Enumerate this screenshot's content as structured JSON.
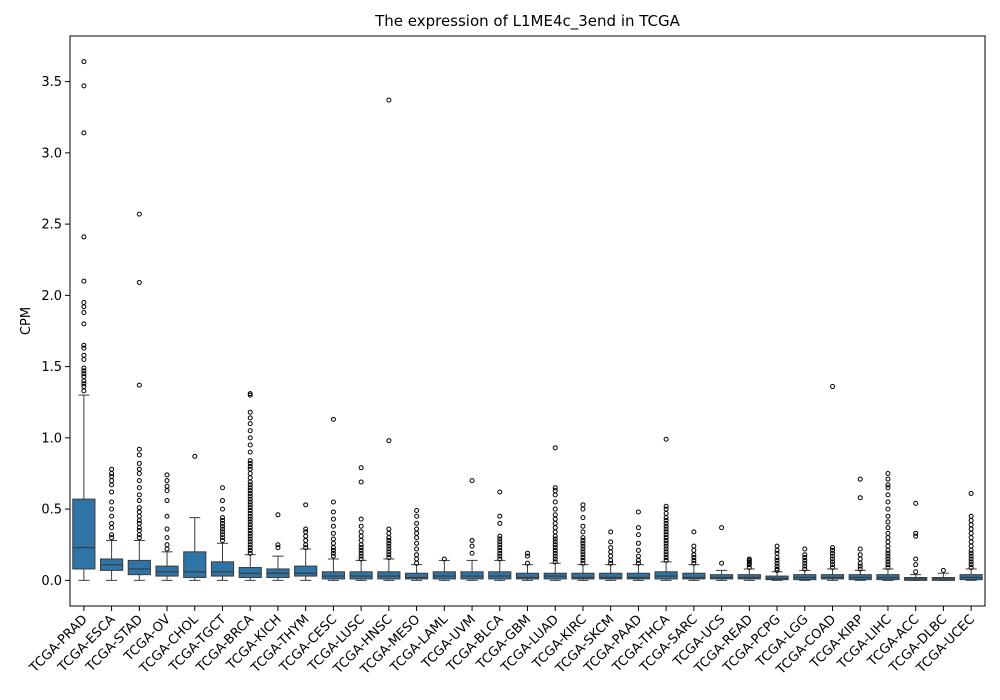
{
  "chart_data": {
    "type": "box",
    "title": "The expression of L1ME4c_3end in TCGA",
    "xlabel": "",
    "ylabel": "CPM",
    "ylim": [
      -0.18,
      3.82
    ],
    "yticks": [
      0.0,
      0.5,
      1.0,
      1.5,
      2.0,
      2.5,
      3.0,
      3.5
    ],
    "ytick_labels": [
      "0.0",
      "0.5",
      "1.0",
      "1.5",
      "2.0",
      "2.5",
      "3.0",
      "3.5"
    ],
    "grid": false,
    "box_color": "#2e74a6",
    "categories": [
      "TCGA-PRAD",
      "TCGA-ESCA",
      "TCGA-STAD",
      "TCGA-OV",
      "TCGA-CHOL",
      "TCGA-TGCT",
      "TCGA-BRCA",
      "TCGA-KICH",
      "TCGA-THYM",
      "TCGA-CESC",
      "TCGA-LUSC",
      "TCGA-HNSC",
      "TCGA-MESO",
      "TCGA-LAML",
      "TCGA-UVM",
      "TCGA-BLCA",
      "TCGA-GBM",
      "TCGA-LUAD",
      "TCGA-KIRC",
      "TCGA-SKCM",
      "TCGA-PAAD",
      "TCGA-THCA",
      "TCGA-SARC",
      "TCGA-UCS",
      "TCGA-READ",
      "TCGA-PCPG",
      "TCGA-LGG",
      "TCGA-COAD",
      "TCGA-KIRP",
      "TCGA-LIHC",
      "TCGA-ACC",
      "TCGA-DLBC",
      "TCGA-UCEC"
    ],
    "boxes": [
      {
        "whislo": 0.0,
        "q1": 0.08,
        "med": 0.23,
        "q3": 0.57,
        "whishi": 1.3,
        "fliers": [
          1.33,
          1.36,
          1.38,
          1.4,
          1.43,
          1.45,
          1.47,
          1.49,
          1.55,
          1.58,
          1.63,
          1.65,
          1.8,
          1.88,
          1.92,
          1.95,
          2.1,
          2.41,
          3.14,
          3.47,
          3.64
        ]
      },
      {
        "whislo": 0.0,
        "q1": 0.07,
        "med": 0.11,
        "q3": 0.15,
        "whishi": 0.28,
        "fliers": [
          0.3,
          0.32,
          0.37,
          0.4,
          0.45,
          0.5,
          0.55,
          0.62,
          0.67,
          0.7,
          0.73,
          0.75,
          0.78
        ]
      },
      {
        "whislo": 0.0,
        "q1": 0.04,
        "med": 0.08,
        "q3": 0.14,
        "whishi": 0.28,
        "fliers": [
          0.3,
          0.32,
          0.35,
          0.37,
          0.4,
          0.42,
          0.45,
          0.48,
          0.51,
          0.56,
          0.6,
          0.65,
          0.7,
          0.75,
          0.78,
          0.82,
          0.88,
          0.92,
          1.37,
          2.09,
          2.57
        ]
      },
      {
        "whislo": 0.0,
        "q1": 0.03,
        "med": 0.06,
        "q3": 0.1,
        "whishi": 0.2,
        "fliers": [
          0.22,
          0.25,
          0.3,
          0.36,
          0.45,
          0.56,
          0.63,
          0.66,
          0.7,
          0.74
        ]
      },
      {
        "whislo": 0.0,
        "q1": 0.02,
        "med": 0.06,
        "q3": 0.2,
        "whishi": 0.44,
        "fliers": [
          0.87
        ]
      },
      {
        "whislo": 0.0,
        "q1": 0.03,
        "med": 0.06,
        "q3": 0.13,
        "whishi": 0.26,
        "fliers": [
          0.28,
          0.3,
          0.32,
          0.34,
          0.36,
          0.38,
          0.4,
          0.42,
          0.44,
          0.5,
          0.56,
          0.65
        ]
      },
      {
        "whislo": 0.0,
        "q1": 0.02,
        "med": 0.05,
        "q3": 0.09,
        "whishi": 0.18,
        "fliers": [
          0.19,
          0.21,
          0.23,
          0.25,
          0.27,
          0.29,
          0.31,
          0.33,
          0.35,
          0.37,
          0.39,
          0.41,
          0.43,
          0.45,
          0.47,
          0.49,
          0.51,
          0.53,
          0.55,
          0.57,
          0.59,
          0.61,
          0.63,
          0.65,
          0.67,
          0.69,
          0.72,
          0.75,
          0.78,
          0.8,
          0.82,
          0.84,
          0.9,
          0.95,
          1.0,
          1.05,
          1.1,
          1.14,
          1.18,
          1.3,
          1.31
        ]
      },
      {
        "whislo": 0.0,
        "q1": 0.02,
        "med": 0.05,
        "q3": 0.08,
        "whishi": 0.17,
        "fliers": [
          0.23,
          0.25,
          0.46
        ]
      },
      {
        "whislo": 0.0,
        "q1": 0.03,
        "med": 0.05,
        "q3": 0.1,
        "whishi": 0.22,
        "fliers": [
          0.23,
          0.25,
          0.28,
          0.31,
          0.34,
          0.36,
          0.53
        ]
      },
      {
        "whislo": 0.0,
        "q1": 0.01,
        "med": 0.03,
        "q3": 0.06,
        "whishi": 0.15,
        "fliers": [
          0.17,
          0.19,
          0.21,
          0.23,
          0.26,
          0.29,
          0.33,
          0.38,
          0.43,
          0.48,
          0.55,
          1.13
        ]
      },
      {
        "whislo": 0.0,
        "q1": 0.01,
        "med": 0.03,
        "q3": 0.06,
        "whishi": 0.14,
        "fliers": [
          0.15,
          0.17,
          0.19,
          0.21,
          0.23,
          0.25,
          0.28,
          0.31,
          0.34,
          0.38,
          0.43,
          0.69,
          0.79
        ]
      },
      {
        "whislo": 0.0,
        "q1": 0.01,
        "med": 0.03,
        "q3": 0.06,
        "whishi": 0.15,
        "fliers": [
          0.16,
          0.18,
          0.2,
          0.22,
          0.24,
          0.26,
          0.28,
          0.3,
          0.33,
          0.36,
          0.98,
          3.37
        ]
      },
      {
        "whislo": 0.0,
        "q1": 0.01,
        "med": 0.02,
        "q3": 0.05,
        "whishi": 0.11,
        "fliers": [
          0.12,
          0.15,
          0.18,
          0.22,
          0.26,
          0.3,
          0.33,
          0.36,
          0.4,
          0.45,
          0.49
        ]
      },
      {
        "whislo": 0.0,
        "q1": 0.01,
        "med": 0.03,
        "q3": 0.06,
        "whishi": 0.14,
        "fliers": [
          0.15
        ]
      },
      {
        "whislo": 0.0,
        "q1": 0.01,
        "med": 0.03,
        "q3": 0.06,
        "whishi": 0.14,
        "fliers": [
          0.19,
          0.24,
          0.28,
          0.7
        ]
      },
      {
        "whislo": 0.0,
        "q1": 0.01,
        "med": 0.03,
        "q3": 0.06,
        "whishi": 0.14,
        "fliers": [
          0.15,
          0.17,
          0.19,
          0.21,
          0.23,
          0.25,
          0.27,
          0.29,
          0.31,
          0.4,
          0.45,
          0.62
        ]
      },
      {
        "whislo": 0.0,
        "q1": 0.01,
        "med": 0.02,
        "q3": 0.05,
        "whishi": 0.11,
        "fliers": [
          0.12,
          0.17,
          0.19
        ]
      },
      {
        "whislo": 0.0,
        "q1": 0.01,
        "med": 0.03,
        "q3": 0.05,
        "whishi": 0.12,
        "fliers": [
          0.13,
          0.15,
          0.17,
          0.19,
          0.21,
          0.23,
          0.25,
          0.27,
          0.29,
          0.31,
          0.34,
          0.37,
          0.4,
          0.43,
          0.46,
          0.5,
          0.55,
          0.6,
          0.63,
          0.65,
          0.93
        ]
      },
      {
        "whislo": 0.0,
        "q1": 0.01,
        "med": 0.02,
        "q3": 0.05,
        "whishi": 0.11,
        "fliers": [
          0.12,
          0.14,
          0.16,
          0.18,
          0.2,
          0.22,
          0.24,
          0.26,
          0.28,
          0.3,
          0.34,
          0.38,
          0.44,
          0.5,
          0.53
        ]
      },
      {
        "whislo": 0.0,
        "q1": 0.01,
        "med": 0.02,
        "q3": 0.05,
        "whishi": 0.11,
        "fliers": [
          0.12,
          0.14,
          0.17,
          0.2,
          0.23,
          0.27,
          0.34
        ]
      },
      {
        "whislo": 0.0,
        "q1": 0.01,
        "med": 0.02,
        "q3": 0.05,
        "whishi": 0.11,
        "fliers": [
          0.12,
          0.14,
          0.17,
          0.21,
          0.26,
          0.32,
          0.37,
          0.48
        ]
      },
      {
        "whislo": 0.0,
        "q1": 0.01,
        "med": 0.03,
        "q3": 0.06,
        "whishi": 0.13,
        "fliers": [
          0.14,
          0.16,
          0.18,
          0.2,
          0.22,
          0.24,
          0.26,
          0.28,
          0.3,
          0.32,
          0.34,
          0.36,
          0.38,
          0.4,
          0.42,
          0.44,
          0.47,
          0.5,
          0.52,
          0.99
        ]
      },
      {
        "whislo": 0.0,
        "q1": 0.01,
        "med": 0.02,
        "q3": 0.05,
        "whishi": 0.11,
        "fliers": [
          0.12,
          0.14,
          0.16,
          0.18,
          0.21,
          0.24,
          0.34
        ]
      },
      {
        "whislo": 0.0,
        "q1": 0.01,
        "med": 0.02,
        "q3": 0.04,
        "whishi": 0.07,
        "fliers": [
          0.12,
          0.37
        ]
      },
      {
        "whislo": 0.0,
        "q1": 0.01,
        "med": 0.02,
        "q3": 0.04,
        "whishi": 0.08,
        "fliers": [
          0.09,
          0.11,
          0.12,
          0.13,
          0.14,
          0.15
        ]
      },
      {
        "whislo": 0.0,
        "q1": 0.005,
        "med": 0.015,
        "q3": 0.03,
        "whishi": 0.06,
        "fliers": [
          0.07,
          0.08,
          0.1,
          0.12,
          0.14,
          0.16,
          0.19,
          0.21,
          0.24
        ]
      },
      {
        "whislo": 0.0,
        "q1": 0.005,
        "med": 0.02,
        "q3": 0.04,
        "whishi": 0.07,
        "fliers": [
          0.08,
          0.1,
          0.12,
          0.14,
          0.16,
          0.18,
          0.22
        ]
      },
      {
        "whislo": 0.0,
        "q1": 0.01,
        "med": 0.02,
        "q3": 0.04,
        "whishi": 0.08,
        "fliers": [
          0.09,
          0.11,
          0.13,
          0.15,
          0.17,
          0.19,
          0.21,
          0.23,
          1.36
        ]
      },
      {
        "whislo": 0.0,
        "q1": 0.005,
        "med": 0.02,
        "q3": 0.04,
        "whishi": 0.07,
        "fliers": [
          0.08,
          0.1,
          0.12,
          0.15,
          0.18,
          0.22,
          0.58,
          0.71
        ]
      },
      {
        "whislo": 0.0,
        "q1": 0.005,
        "med": 0.02,
        "q3": 0.04,
        "whishi": 0.08,
        "fliers": [
          0.09,
          0.11,
          0.13,
          0.15,
          0.17,
          0.19,
          0.21,
          0.24,
          0.27,
          0.3,
          0.33,
          0.37,
          0.41,
          0.45,
          0.5,
          0.55,
          0.6,
          0.65,
          0.67,
          0.71,
          0.75
        ]
      },
      {
        "whislo": 0.0,
        "q1": 0.0,
        "med": 0.01,
        "q3": 0.02,
        "whishi": 0.04,
        "fliers": [
          0.06,
          0.11,
          0.15,
          0.31,
          0.33,
          0.54
        ]
      },
      {
        "whislo": 0.0,
        "q1": 0.0,
        "med": 0.01,
        "q3": 0.02,
        "whishi": 0.05,
        "fliers": [
          0.07
        ]
      },
      {
        "whislo": 0.0,
        "q1": 0.005,
        "med": 0.02,
        "q3": 0.04,
        "whishi": 0.08,
        "fliers": [
          0.09,
          0.11,
          0.13,
          0.15,
          0.17,
          0.19,
          0.21,
          0.24,
          0.27,
          0.3,
          0.33,
          0.36,
          0.39,
          0.42,
          0.45,
          0.61
        ]
      }
    ]
  }
}
